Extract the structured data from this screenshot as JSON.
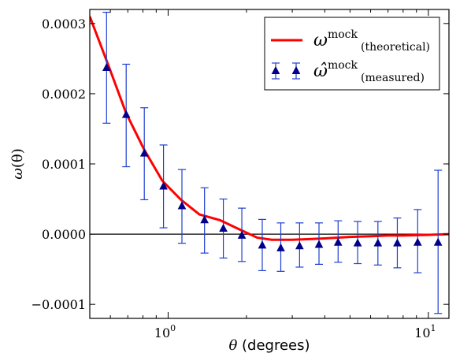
{
  "chart_data": {
    "type": "line",
    "xscale": "log",
    "xlim": [
      0.5,
      12
    ],
    "ylim": [
      -0.00012,
      0.00032
    ],
    "xlabel": {
      "symbol": "θ",
      "text": " (degrees)"
    },
    "ylabel": {
      "symbol": "ω",
      "text": "(θ)"
    },
    "x_ticks": [
      {
        "value": 1,
        "label_base": "10",
        "label_exp": "0"
      },
      {
        "value": 10,
        "label_base": "10",
        "label_exp": "1"
      }
    ],
    "y_ticks": [
      {
        "value": -0.0001,
        "label": "−0.0001"
      },
      {
        "value": 0.0,
        "label": "0.0000"
      },
      {
        "value": 0.0001,
        "label": "0.0001"
      },
      {
        "value": 0.0002,
        "label": "0.0002"
      },
      {
        "value": 0.0003,
        "label": "0.0003"
      }
    ],
    "zero_line": true,
    "series": [
      {
        "name": "ω^mock (theoretical)",
        "legend_symbol": "ω",
        "legend_sup": "mock",
        "legend_sub": "(theoretical)",
        "kind": "line",
        "color": "#ff0000",
        "x": [
          0.5,
          0.59,
          0.69,
          0.81,
          0.95,
          1.12,
          1.32,
          1.58,
          1.85,
          2.2,
          2.5,
          3.0,
          3.5,
          4.0,
          5.0,
          6.0,
          7.0,
          8.0,
          10.0,
          12.0
        ],
        "y": [
          0.00031,
          0.00024,
          0.000172,
          0.00012,
          7.6e-05,
          4.9e-05,
          2.8e-05,
          2e-05,
          8e-06,
          -5e-06,
          -8e-06,
          -8e-06,
          -7e-06,
          -6e-06,
          -4e-06,
          -3e-06,
          -2e-06,
          -2e-06,
          -1e-06,
          0.0
        ]
      },
      {
        "name": "ω̂^mock (measured)",
        "legend_symbol": "ω̂",
        "legend_sup": "mock",
        "legend_sub": "(measured)",
        "kind": "errorbar",
        "color": "#00008b",
        "errcolor": "#1f3fd1",
        "x": [
          0.58,
          0.69,
          0.81,
          0.96,
          1.13,
          1.38,
          1.63,
          1.92,
          2.3,
          2.71,
          3.2,
          3.8,
          4.5,
          5.35,
          6.4,
          7.6,
          9.1,
          10.9
        ],
        "y": [
          0.000237,
          0.00017,
          0.000115,
          6.8e-05,
          4e-05,
          2e-05,
          8e-06,
          -2e-06,
          -1.6e-05,
          -2e-05,
          -1.7e-05,
          -1.5e-05,
          -1.2e-05,
          -1.3e-05,
          -1.3e-05,
          -1.3e-05,
          -1.2e-05,
          -1.2e-05
        ],
        "yerr_lo": [
          7.9e-05,
          7.4e-05,
          6.6e-05,
          5.9e-05,
          5.3e-05,
          4.7e-05,
          4.2e-05,
          3.7e-05,
          3.6e-05,
          3.3e-05,
          3e-05,
          2.8e-05,
          2.8e-05,
          2.9e-05,
          3.1e-05,
          3.5e-05,
          4.3e-05,
          0.000101
        ],
        "yerr_hi": [
          7.9e-05,
          7.2e-05,
          6.5e-05,
          5.9e-05,
          5.2e-05,
          4.6e-05,
          4.2e-05,
          3.9e-05,
          3.7e-05,
          3.6e-05,
          3.3e-05,
          3.1e-05,
          3.1e-05,
          3.1e-05,
          3.1e-05,
          3.6e-05,
          4.7e-05,
          0.000103
        ]
      }
    ],
    "legend_placement": "top-right"
  }
}
